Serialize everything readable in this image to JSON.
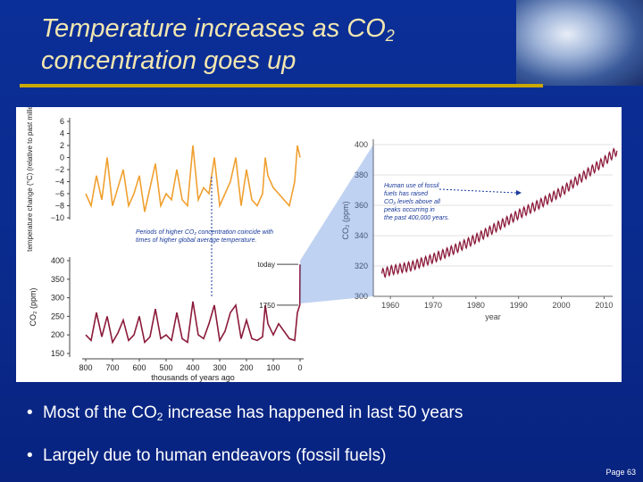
{
  "slide": {
    "title_line1_pre": "Temperature increases as CO",
    "title_line1_sub": "2",
    "title_line2": "concentration goes up",
    "bullets": [
      {
        "pre": "Most of the CO",
        "sub": "2",
        "post": " increase has happened in last 50 years"
      },
      {
        "pre": "Largely due to human endeavors (fossil fuels)",
        "sub": "",
        "post": ""
      }
    ],
    "page_number": "Page 63"
  },
  "chart_data": [
    {
      "type": "line",
      "ylabel": "temperature change (°C) (relative to past millenium)",
      "ylim": [
        -10,
        6
      ],
      "yticks": [
        "6",
        "4",
        "2",
        "0",
        "−2",
        "−4",
        "−6",
        "−8",
        "−10"
      ],
      "xlim": [
        800,
        0
      ],
      "series": [
        {
          "x": [
            800,
            780,
            760,
            740,
            720,
            700,
            680,
            660,
            640,
            620,
            600,
            580,
            560,
            540,
            520,
            500,
            480,
            460,
            440,
            420,
            400,
            380,
            360,
            340,
            320,
            300,
            280,
            260,
            240,
            220,
            200,
            180,
            160,
            140,
            130,
            120,
            100,
            80,
            60,
            40,
            20,
            10,
            0
          ],
          "values": [
            -6,
            -8,
            -3,
            -7,
            0,
            -8,
            -5,
            -2,
            -8,
            -6,
            -3,
            -9,
            -5,
            -1,
            -8,
            -6,
            -7,
            -2,
            -7,
            -8,
            2,
            -7,
            -5,
            -6,
            0,
            -8,
            -6,
            -4,
            0,
            -8,
            -2,
            -7,
            -8,
            -6,
            0,
            -3,
            -5,
            -6,
            -7,
            -8,
            -4,
            2,
            0
          ]
        }
      ],
      "color": "#f0a030"
    },
    {
      "type": "line",
      "ylabel": "CO₂ (ppm)",
      "xlabel": "thousands of years ago",
      "ylim": [
        150,
        400
      ],
      "yticks": [
        "400",
        "350",
        "300",
        "250",
        "200",
        "150"
      ],
      "xticks": [
        "800",
        "700",
        "600",
        "500",
        "400",
        "300",
        "200",
        "100",
        "0"
      ],
      "series": [
        {
          "x": [
            800,
            780,
            760,
            740,
            720,
            700,
            680,
            660,
            640,
            620,
            600,
            580,
            560,
            540,
            520,
            500,
            480,
            460,
            440,
            420,
            400,
            380,
            360,
            340,
            320,
            300,
            280,
            260,
            240,
            220,
            200,
            180,
            160,
            140,
            130,
            120,
            100,
            80,
            60,
            40,
            20,
            10,
            1,
            0
          ],
          "values": [
            200,
            185,
            260,
            195,
            250,
            180,
            205,
            240,
            185,
            200,
            250,
            180,
            195,
            270,
            190,
            200,
            185,
            260,
            190,
            180,
            290,
            200,
            190,
            230,
            280,
            185,
            210,
            260,
            280,
            190,
            240,
            190,
            185,
            195,
            280,
            230,
            200,
            230,
            210,
            190,
            185,
            260,
            280,
            390
          ]
        }
      ],
      "annotations": [
        "today",
        "1750",
        "Periods of higher CO₂ concentration coincide with times of higher global average temperature."
      ],
      "color": "#8b1a3a"
    },
    {
      "type": "line",
      "ylabel": "CO₂ (ppm)",
      "xlabel": "year",
      "ylim": [
        300,
        400
      ],
      "yticks": [
        "400",
        "380",
        "360",
        "340",
        "320",
        "300"
      ],
      "xticks": [
        "1960",
        "1970",
        "1980",
        "1990",
        "2000",
        "2010"
      ],
      "series": [
        {
          "x": [
            1958,
            1960,
            1965,
            1970,
            1975,
            1980,
            1985,
            1990,
            1995,
            2000,
            2005,
            2010,
            2013
          ],
          "values": [
            315,
            317,
            320,
            325,
            331,
            338,
            346,
            354,
            361,
            369,
            379,
            389,
            396
          ]
        }
      ],
      "annotations": [
        "Human use of fossil fuels has raised CO₂ levels above all peaks occurring in the past 400,000 years."
      ],
      "color": "#8b1a3a"
    }
  ]
}
